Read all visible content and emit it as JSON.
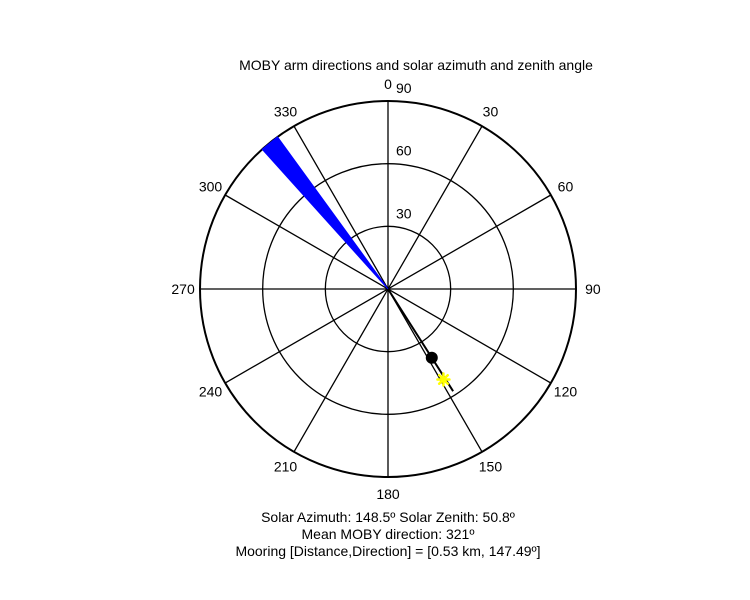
{
  "chart_data": {
    "type": "polar",
    "title": "MOBY arm directions and solar azimuth and zenith angle",
    "direction_convention": "0 at top, clockwise",
    "angle_ticks": [
      "0",
      "30",
      "60",
      "90",
      "120",
      "150",
      "180",
      "210",
      "240",
      "270",
      "300",
      "330"
    ],
    "radial_ticks": [
      "30",
      "60",
      "90"
    ],
    "r_range": [
      0,
      90
    ],
    "grid": true,
    "series": [
      {
        "kind": "wedge",
        "color": "#0000ff",
        "theta_start": 318,
        "theta_end": 324,
        "r": 90
      },
      {
        "kind": "line",
        "color": "#000000",
        "theta": [
          147.49,
          147.49
        ],
        "r": [
          0,
          58
        ]
      },
      {
        "kind": "point",
        "marker": "filled-circle",
        "color": "#000000",
        "theta": 147.49,
        "r": 39
      },
      {
        "kind": "point",
        "marker": "asterisk",
        "color": "#ffff00",
        "theta": 148.5,
        "r": 50.8
      }
    ]
  },
  "info": {
    "line1": "Solar Azimuth: 148.5º   Solar Zenith: 50.8º",
    "line2": "Mean MOBY direction: 321º",
    "line3": "Mooring [Distance,Direction] = [0.53 km, 147.49º]"
  }
}
